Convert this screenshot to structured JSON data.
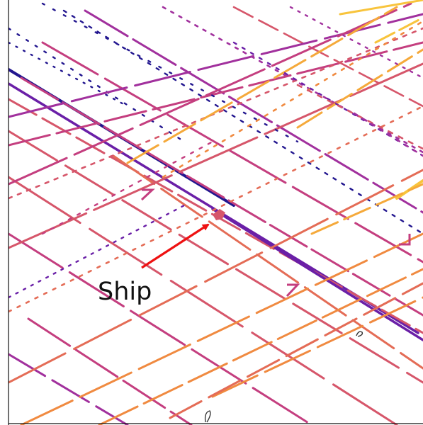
{
  "annotation": {
    "label": "Ship",
    "arrow_color": "#ee1111"
  },
  "palette": {
    "dark_blue": "#22168f",
    "purple": "#6a1fa7",
    "magenta": "#a1309d",
    "pink": "#c43e7f",
    "rose": "#d6566a",
    "coral": "#e46c56",
    "orange": "#f08a40",
    "amber": "#f5a93a",
    "yellow": "#f8c43c"
  }
}
